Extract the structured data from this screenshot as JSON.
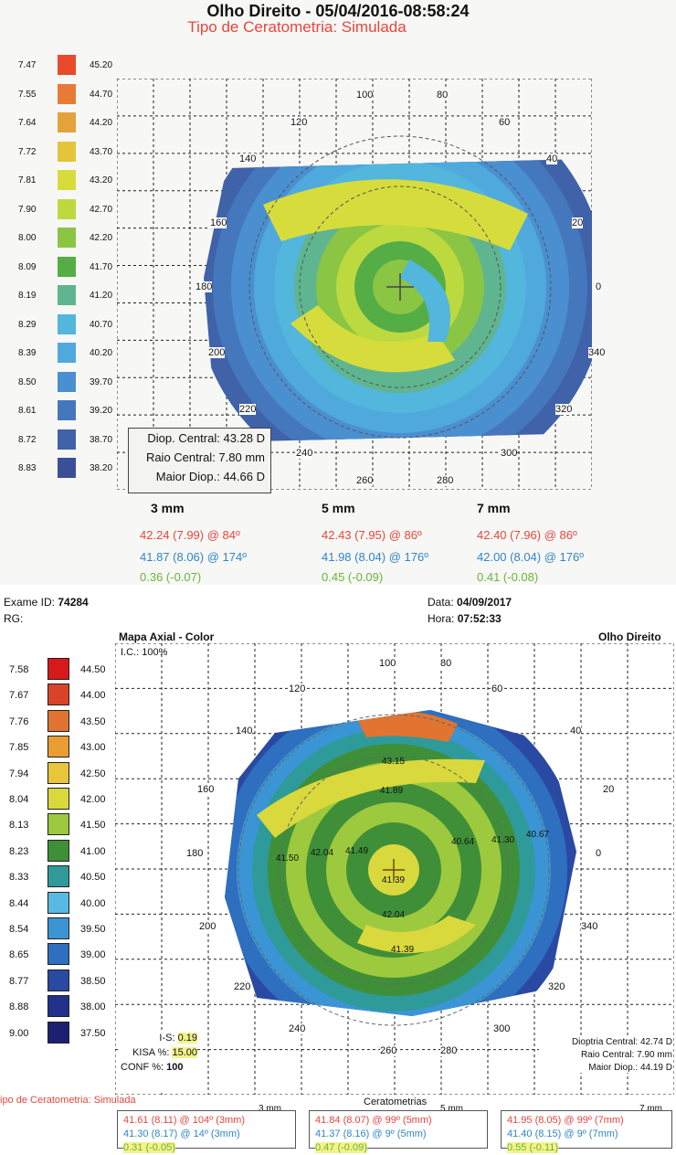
{
  "top": {
    "title": "Olho Direito - 05/04/2016-08:58:24",
    "subtitle": "Tipo de Ceratometria: Simulada",
    "legend": [
      {
        "radius": "7.47",
        "color": "#e94a2b",
        "diopter": "45.20"
      },
      {
        "radius": "7.55",
        "color": "#e77b35",
        "diopter": "44.70"
      },
      {
        "radius": "7.64",
        "color": "#e3a23a",
        "diopter": "44.20"
      },
      {
        "radius": "7.72",
        "color": "#e3c43a",
        "diopter": "43.70"
      },
      {
        "radius": "7.81",
        "color": "#d7dc3d",
        "diopter": "43.20"
      },
      {
        "radius": "7.90",
        "color": "#bcd93f",
        "diopter": "42.70"
      },
      {
        "radius": "8.00",
        "color": "#8ac544",
        "diopter": "42.20"
      },
      {
        "radius": "8.09",
        "color": "#55ad45",
        "diopter": "41.70"
      },
      {
        "radius": "8.19",
        "color": "#5fb590",
        "diopter": "41.20"
      },
      {
        "radius": "8.29",
        "color": "#52b6dd",
        "diopter": "40.70"
      },
      {
        "radius": "8.39",
        "color": "#4fa9dd",
        "diopter": "40.20"
      },
      {
        "radius": "8.50",
        "color": "#4a8fd0",
        "diopter": "39.70"
      },
      {
        "radius": "8.61",
        "color": "#4577bd",
        "diopter": "39.20"
      },
      {
        "radius": "8.72",
        "color": "#3f62a8",
        "diopter": "38.70"
      },
      {
        "radius": "8.83",
        "color": "#3a4f96",
        "diopter": "38.20"
      }
    ],
    "axis": [
      "100",
      "80",
      "120",
      "60",
      "140",
      "40",
      "160",
      "20",
      "180",
      "0",
      "200",
      "340",
      "220",
      "320",
      "240",
      "300",
      "260",
      "280"
    ],
    "info": {
      "central_diop": "Diop. Central: 43.28 D",
      "central_radius": "Raio Central: 7.80 mm",
      "max_diop": "Maior Diop.: 44.66 D"
    },
    "zones": [
      {
        "label": "3 mm",
        "red": "42.24 (7.99) @ 84º",
        "blue": "41.87 (8.06) @ 174º",
        "green": "0.36 (-0.07)"
      },
      {
        "label": "5 mm",
        "red": "42.43 (7.95) @ 86º",
        "blue": "41.98 (8.04) @ 176º",
        "green": "0.45 (-0.09)"
      },
      {
        "label": "7 mm",
        "red": "42.40 (7.96) @ 86º",
        "blue": "42.00 (8.04) @ 176º",
        "green": "0.41 (-0.08)"
      }
    ]
  },
  "bottom": {
    "exam_label": "Exame ID:",
    "exam_id": "74284",
    "rg_label": "RG:",
    "date_label": "Data:",
    "date": "04/09/2017",
    "time_label": "Hora:",
    "time": "07:52:33",
    "map_title": "Mapa Axial - Color",
    "eye": "Olho Direito",
    "ic": "I.C.: 100%",
    "legend": [
      {
        "radius": "7.58",
        "color": "#d8191c",
        "diopter": "44.50"
      },
      {
        "radius": "7.67",
        "color": "#d8432a",
        "diopter": "44.00"
      },
      {
        "radius": "7.76",
        "color": "#e07430",
        "diopter": "43.50"
      },
      {
        "radius": "7.85",
        "color": "#e99d33",
        "diopter": "43.00"
      },
      {
        "radius": "7.94",
        "color": "#e8c63a",
        "diopter": "42.50"
      },
      {
        "radius": "8.04",
        "color": "#d9d83c",
        "diopter": "42.00"
      },
      {
        "radius": "8.13",
        "color": "#9dc93f",
        "diopter": "41.50"
      },
      {
        "radius": "8.23",
        "color": "#3f8f38",
        "diopter": "41.00"
      },
      {
        "radius": "8.33",
        "color": "#2f9a9a",
        "diopter": "40.50"
      },
      {
        "radius": "8.44",
        "color": "#5ab9e3",
        "diopter": "40.00"
      },
      {
        "radius": "8.54",
        "color": "#3b95d4",
        "diopter": "39.50"
      },
      {
        "radius": "8.65",
        "color": "#2e6fbf",
        "diopter": "39.00"
      },
      {
        "radius": "8.77",
        "color": "#2a49a3",
        "diopter": "38.50"
      },
      {
        "radius": "8.88",
        "color": "#22318a",
        "diopter": "38.00"
      },
      {
        "radius": "9.00",
        "color": "#1b2070",
        "diopter": "37.50"
      }
    ],
    "axis": [
      "100",
      "80",
      "120",
      "60",
      "140",
      "40",
      "160",
      "20",
      "180",
      "0",
      "200",
      "340",
      "220",
      "320",
      "240",
      "300",
      "260",
      "280"
    ],
    "map_values": [
      "43.15",
      "41.89",
      "40.64",
      "41.30",
      "40.67",
      "41.50",
      "42.04",
      "41.49",
      "41.39",
      "42.04",
      "41.39"
    ],
    "indices": {
      "is_label": "I-S:",
      "is_value": "0.19",
      "kisa_label": "KISA %:",
      "kisa_value": "15.00",
      "conf_label": "CONF %:",
      "conf_value": "100"
    },
    "right_info": {
      "central_diop": "Dioptria Central: 42.74 D",
      "central_radius": "Raio Central: 7.90 mm",
      "max_diop": "Maior Diop.: 44.19 D"
    },
    "ker_type": "ipo de Ceratometria: Simulada",
    "ker_title": "Ceratometrias",
    "zones": [
      {
        "label": "3 mm",
        "red": "41.61 (8.11) @ 104º (3mm)",
        "blue": "41.30 (8.17) @ 14º (3mm)",
        "green": "0.31 (-0.05)"
      },
      {
        "label": "5 mm",
        "red": "41.84 (8.07) @ 99º (5mm)",
        "blue": "41.37 (8.16) @ 9º (5mm)",
        "green": "0.47 (-0.09)"
      },
      {
        "label": "7 mm",
        "red": "41.95 (8.05) @ 99º (7mm)",
        "blue": "41.40 (8.15) @ 9º (7mm)",
        "green": "0.55 (-0.11)"
      }
    ]
  }
}
